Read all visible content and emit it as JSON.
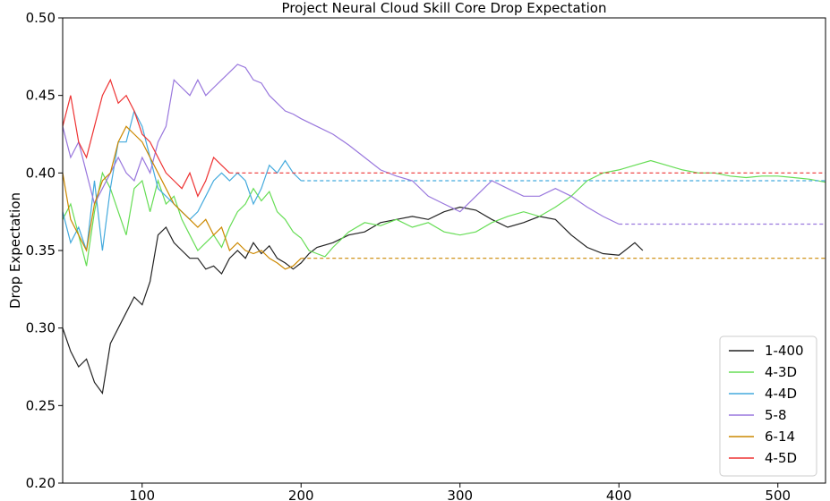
{
  "chart_data": {
    "type": "line",
    "title": "Project Neural Cloud Skill Core Drop Expectation",
    "xlabel": "",
    "ylabel": "Drop Expectation",
    "xlim": [
      50,
      530
    ],
    "ylim": [
      0.2,
      0.5
    ],
    "xticks": [
      100,
      200,
      300,
      400,
      500
    ],
    "yticks": [
      0.2,
      0.25,
      0.3,
      0.35,
      0.4,
      0.45,
      0.5
    ],
    "xtick_labels": [
      "100",
      "200",
      "300",
      "400",
      "500"
    ],
    "ytick_labels": [
      "0.20",
      "0.25",
      "0.30",
      "0.35",
      "0.40",
      "0.45",
      "0.50"
    ],
    "grid": false,
    "legend_position": "lower-right",
    "series": [
      {
        "name": "1-400",
        "color": "#222222",
        "points": [
          [
            50,
            0.3
          ],
          [
            55,
            0.285
          ],
          [
            60,
            0.275
          ],
          [
            65,
            0.28
          ],
          [
            70,
            0.265
          ],
          [
            75,
            0.258
          ],
          [
            80,
            0.29
          ],
          [
            85,
            0.3
          ],
          [
            90,
            0.31
          ],
          [
            95,
            0.32
          ],
          [
            100,
            0.315
          ],
          [
            105,
            0.33
          ],
          [
            110,
            0.36
          ],
          [
            115,
            0.365
          ],
          [
            120,
            0.355
          ],
          [
            125,
            0.35
          ],
          [
            130,
            0.345
          ],
          [
            135,
            0.345
          ],
          [
            140,
            0.338
          ],
          [
            145,
            0.34
          ],
          [
            150,
            0.335
          ],
          [
            155,
            0.345
          ],
          [
            160,
            0.35
          ],
          [
            165,
            0.345
          ],
          [
            170,
            0.355
          ],
          [
            175,
            0.348
          ],
          [
            180,
            0.353
          ],
          [
            185,
            0.345
          ],
          [
            190,
            0.342
          ],
          [
            195,
            0.338
          ],
          [
            200,
            0.342
          ],
          [
            205,
            0.348
          ],
          [
            210,
            0.352
          ],
          [
            220,
            0.355
          ],
          [
            230,
            0.36
          ],
          [
            240,
            0.362
          ],
          [
            250,
            0.368
          ],
          [
            260,
            0.37
          ],
          [
            270,
            0.372
          ],
          [
            280,
            0.37
          ],
          [
            290,
            0.375
          ],
          [
            300,
            0.378
          ],
          [
            310,
            0.376
          ],
          [
            320,
            0.37
          ],
          [
            330,
            0.365
          ],
          [
            340,
            0.368
          ],
          [
            350,
            0.372
          ],
          [
            360,
            0.37
          ],
          [
            370,
            0.36
          ],
          [
            380,
            0.352
          ],
          [
            390,
            0.348
          ],
          [
            400,
            0.347
          ],
          [
            410,
            0.355
          ],
          [
            415,
            0.35
          ]
        ]
      },
      {
        "name": "4-3D",
        "color": "#66dd55",
        "points": [
          [
            50,
            0.37
          ],
          [
            55,
            0.38
          ],
          [
            60,
            0.36
          ],
          [
            65,
            0.34
          ],
          [
            70,
            0.375
          ],
          [
            75,
            0.4
          ],
          [
            80,
            0.39
          ],
          [
            85,
            0.375
          ],
          [
            90,
            0.36
          ],
          [
            95,
            0.39
          ],
          [
            100,
            0.395
          ],
          [
            105,
            0.375
          ],
          [
            110,
            0.395
          ],
          [
            115,
            0.38
          ],
          [
            120,
            0.385
          ],
          [
            125,
            0.37
          ],
          [
            130,
            0.36
          ],
          [
            135,
            0.35
          ],
          [
            140,
            0.355
          ],
          [
            145,
            0.36
          ],
          [
            150,
            0.352
          ],
          [
            155,
            0.365
          ],
          [
            160,
            0.375
          ],
          [
            165,
            0.38
          ],
          [
            170,
            0.39
          ],
          [
            175,
            0.382
          ],
          [
            180,
            0.388
          ],
          [
            185,
            0.375
          ],
          [
            190,
            0.37
          ],
          [
            195,
            0.362
          ],
          [
            200,
            0.358
          ],
          [
            205,
            0.35
          ],
          [
            210,
            0.348
          ],
          [
            215,
            0.346
          ],
          [
            220,
            0.352
          ],
          [
            230,
            0.362
          ],
          [
            240,
            0.368
          ],
          [
            250,
            0.366
          ],
          [
            260,
            0.37
          ],
          [
            270,
            0.365
          ],
          [
            280,
            0.368
          ],
          [
            290,
            0.362
          ],
          [
            300,
            0.36
          ],
          [
            310,
            0.362
          ],
          [
            320,
            0.368
          ],
          [
            330,
            0.372
          ],
          [
            340,
            0.375
          ],
          [
            350,
            0.372
          ],
          [
            360,
            0.378
          ],
          [
            370,
            0.385
          ],
          [
            380,
            0.395
          ],
          [
            390,
            0.4
          ],
          [
            400,
            0.402
          ],
          [
            410,
            0.405
          ],
          [
            420,
            0.408
          ],
          [
            430,
            0.405
          ],
          [
            440,
            0.402
          ],
          [
            450,
            0.4
          ],
          [
            460,
            0.4
          ],
          [
            470,
            0.398
          ],
          [
            480,
            0.397
          ],
          [
            490,
            0.398
          ],
          [
            500,
            0.398
          ],
          [
            510,
            0.397
          ],
          [
            520,
            0.396
          ],
          [
            530,
            0.394
          ]
        ]
      },
      {
        "name": "4-4D",
        "color": "#44aadd",
        "points": [
          [
            50,
            0.375
          ],
          [
            55,
            0.355
          ],
          [
            60,
            0.365
          ],
          [
            65,
            0.35
          ],
          [
            70,
            0.395
          ],
          [
            75,
            0.35
          ],
          [
            80,
            0.39
          ],
          [
            85,
            0.42
          ],
          [
            90,
            0.42
          ],
          [
            95,
            0.44
          ],
          [
            100,
            0.43
          ],
          [
            105,
            0.41
          ],
          [
            110,
            0.39
          ],
          [
            115,
            0.385
          ],
          [
            120,
            0.38
          ],
          [
            125,
            0.375
          ],
          [
            130,
            0.37
          ],
          [
            135,
            0.375
          ],
          [
            140,
            0.385
          ],
          [
            145,
            0.395
          ],
          [
            150,
            0.4
          ],
          [
            155,
            0.395
          ],
          [
            160,
            0.4
          ],
          [
            165,
            0.395
          ],
          [
            170,
            0.38
          ],
          [
            175,
            0.39
          ],
          [
            180,
            0.405
          ],
          [
            185,
            0.4
          ],
          [
            190,
            0.408
          ],
          [
            195,
            0.4
          ],
          [
            200,
            0.395
          ],
          [
            530,
            0.395
          ]
        ]
      },
      {
        "name": "5-8",
        "color": "#9977dd",
        "points": [
          [
            50,
            0.43
          ],
          [
            55,
            0.41
          ],
          [
            60,
            0.42
          ],
          [
            65,
            0.4
          ],
          [
            70,
            0.38
          ],
          [
            75,
            0.39
          ],
          [
            80,
            0.4
          ],
          [
            85,
            0.41
          ],
          [
            90,
            0.4
          ],
          [
            95,
            0.395
          ],
          [
            100,
            0.41
          ],
          [
            105,
            0.4
          ],
          [
            110,
            0.42
          ],
          [
            115,
            0.43
          ],
          [
            120,
            0.46
          ],
          [
            125,
            0.455
          ],
          [
            130,
            0.45
          ],
          [
            135,
            0.46
          ],
          [
            140,
            0.45
          ],
          [
            145,
            0.455
          ],
          [
            150,
            0.46
          ],
          [
            155,
            0.465
          ],
          [
            160,
            0.47
          ],
          [
            165,
            0.468
          ],
          [
            170,
            0.46
          ],
          [
            175,
            0.458
          ],
          [
            180,
            0.45
          ],
          [
            185,
            0.445
          ],
          [
            190,
            0.44
          ],
          [
            195,
            0.438
          ],
          [
            200,
            0.435
          ],
          [
            210,
            0.43
          ],
          [
            220,
            0.425
          ],
          [
            230,
            0.418
          ],
          [
            240,
            0.41
          ],
          [
            250,
            0.402
          ],
          [
            260,
            0.398
          ],
          [
            270,
            0.395
          ],
          [
            280,
            0.385
          ],
          [
            290,
            0.38
          ],
          [
            300,
            0.375
          ],
          [
            310,
            0.385
          ],
          [
            320,
            0.395
          ],
          [
            330,
            0.39
          ],
          [
            340,
            0.385
          ],
          [
            350,
            0.385
          ],
          [
            360,
            0.39
          ],
          [
            370,
            0.385
          ],
          [
            380,
            0.378
          ],
          [
            390,
            0.372
          ],
          [
            400,
            0.367
          ],
          [
            530,
            0.367
          ]
        ]
      },
      {
        "name": "6-14",
        "color": "#cc8800",
        "points": [
          [
            50,
            0.4
          ],
          [
            55,
            0.37
          ],
          [
            60,
            0.36
          ],
          [
            65,
            0.35
          ],
          [
            70,
            0.38
          ],
          [
            75,
            0.395
          ],
          [
            80,
            0.4
          ],
          [
            85,
            0.42
          ],
          [
            90,
            0.43
          ],
          [
            95,
            0.425
          ],
          [
            100,
            0.42
          ],
          [
            105,
            0.41
          ],
          [
            110,
            0.4
          ],
          [
            115,
            0.39
          ],
          [
            120,
            0.38
          ],
          [
            125,
            0.375
          ],
          [
            130,
            0.37
          ],
          [
            135,
            0.365
          ],
          [
            140,
            0.37
          ],
          [
            145,
            0.36
          ],
          [
            150,
            0.365
          ],
          [
            155,
            0.35
          ],
          [
            160,
            0.355
          ],
          [
            165,
            0.35
          ],
          [
            170,
            0.348
          ],
          [
            175,
            0.35
          ],
          [
            180,
            0.345
          ],
          [
            185,
            0.342
          ],
          [
            190,
            0.338
          ],
          [
            195,
            0.34
          ],
          [
            200,
            0.345
          ],
          [
            530,
            0.345
          ]
        ]
      },
      {
        "name": "4-5D",
        "color": "#ee3333",
        "points": [
          [
            50,
            0.43
          ],
          [
            55,
            0.45
          ],
          [
            60,
            0.42
          ],
          [
            65,
            0.41
          ],
          [
            70,
            0.43
          ],
          [
            75,
            0.45
          ],
          [
            80,
            0.46
          ],
          [
            85,
            0.445
          ],
          [
            90,
            0.45
          ],
          [
            95,
            0.44
          ],
          [
            100,
            0.425
          ],
          [
            105,
            0.42
          ],
          [
            110,
            0.41
          ],
          [
            115,
            0.4
          ],
          [
            120,
            0.395
          ],
          [
            125,
            0.39
          ],
          [
            130,
            0.4
          ],
          [
            135,
            0.385
          ],
          [
            140,
            0.395
          ],
          [
            145,
            0.41
          ],
          [
            150,
            0.405
          ],
          [
            155,
            0.4
          ],
          [
            530,
            0.4
          ]
        ]
      }
    ]
  }
}
